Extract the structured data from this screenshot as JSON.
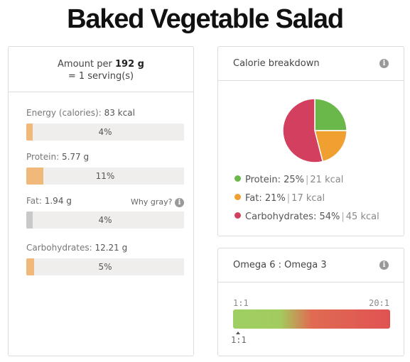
{
  "page": {
    "title": "Baked Vegetable Salad"
  },
  "nutrition": {
    "amount_prefix": "Amount per",
    "amount_weight": "192 g",
    "serving": "= 1 serving(s)",
    "why_gray": "Why gray?",
    "info_glyph": "i",
    "items": [
      {
        "label": "Energy (calories):",
        "value": "83 kcal",
        "percent_text": "4%",
        "fill_fraction": 0.04,
        "color": "#f0b97a"
      },
      {
        "label": "Protein:",
        "value": "5.77 g",
        "percent_text": "11%",
        "fill_fraction": 0.11,
        "color": "#f0b97a"
      },
      {
        "label": "Fat:",
        "value": "1.94 g",
        "percent_text": "4%",
        "fill_fraction": 0.04,
        "color": "#c9c9c9"
      },
      {
        "label": "Carbohydrates:",
        "value": "12.21 g",
        "percent_text": "5%",
        "fill_fraction": 0.05,
        "color": "#f0b97a"
      }
    ]
  },
  "calorie_breakdown": {
    "title": "Calorie breakdown",
    "info_glyph": "i",
    "slices": [
      {
        "name": "Protein:",
        "percent": "25%",
        "kcal": "21 kcal",
        "fraction": 0.25,
        "color": "#6bb84a"
      },
      {
        "name": "Fat:",
        "percent": "21%",
        "kcal": "17 kcal",
        "fraction": 0.21,
        "color": "#f0a030"
      },
      {
        "name": "Carbohydrates:",
        "percent": "54%",
        "kcal": "45 kcal",
        "fraction": 0.54,
        "color": "#d3405f"
      }
    ]
  },
  "omega": {
    "title": "Omega 6 : Omega 3",
    "info_glyph": "i",
    "scale_min": "1:1",
    "scale_max": "20:1",
    "current": "1:1"
  }
}
